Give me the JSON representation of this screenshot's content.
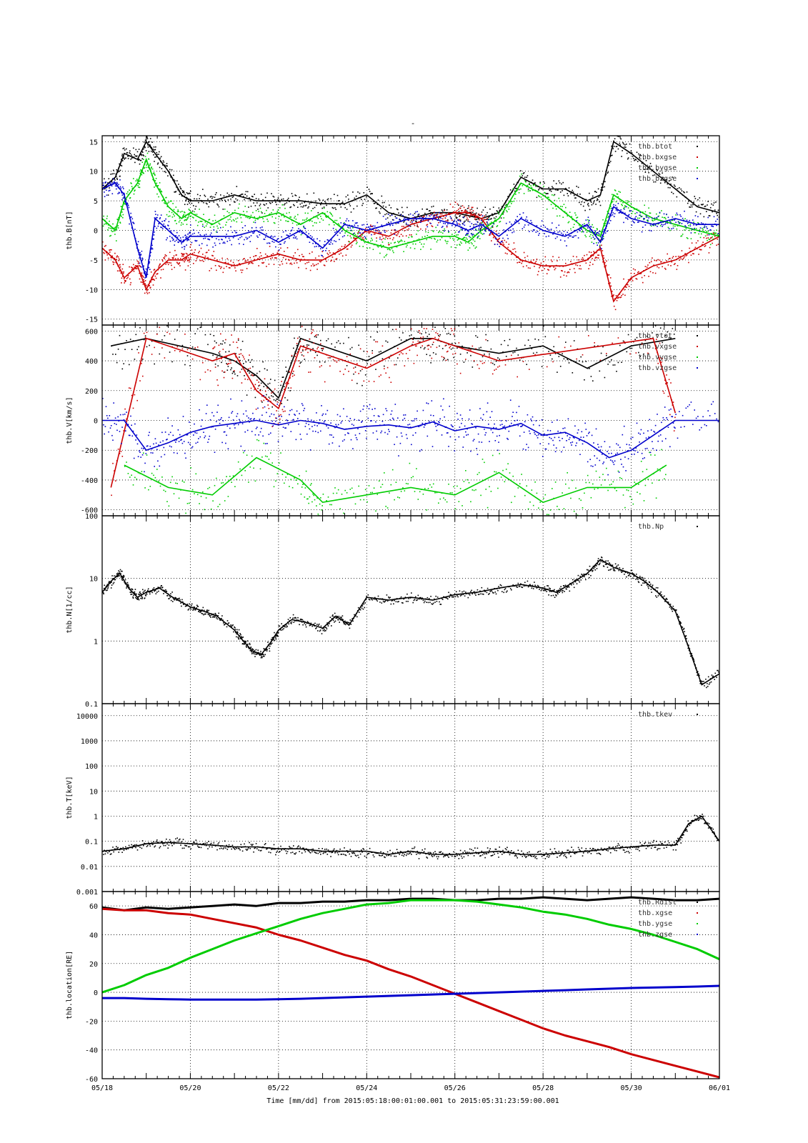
{
  "figure": {
    "title": "-",
    "xlabel": "Time [mm/dd]  from 2015:05:18:00:01:00.001  to  2015:05:31:23:59:00.001",
    "x_ticks": [
      "05/18",
      "05/20",
      "05/22",
      "05/24",
      "05/26",
      "05/28",
      "05/30",
      "06/01"
    ]
  },
  "chart_data": [
    {
      "id": "B",
      "type": "scatter",
      "ylabel": "thb.B[nT]",
      "xlim": [
        "2015-05-18",
        "2015-06-01"
      ],
      "ylim": [
        -16,
        16
      ],
      "yscale": "linear",
      "y_ticks": [
        15,
        10,
        5,
        0,
        -5,
        -10,
        -15
      ],
      "grid": true,
      "legend_position": "top-right",
      "series": [
        {
          "name": "thb.btot",
          "color": "#000000",
          "x": [
            0.0,
            0.3,
            0.5,
            0.8,
            1.0,
            1.2,
            1.5,
            1.8,
            2.0,
            2.5,
            3.0,
            3.5,
            4.0,
            4.5,
            5.0,
            5.5,
            6.0,
            6.5,
            7.0,
            7.5,
            8.0,
            8.3,
            8.6,
            9.0,
            9.5,
            10.0,
            10.5,
            11.0,
            11.3,
            11.6,
            12.0,
            12.5,
            13.0,
            13.5,
            14.0
          ],
          "y": [
            7,
            9,
            13,
            12,
            15,
            13,
            10,
            6,
            5,
            5,
            6,
            5,
            5,
            5,
            4.5,
            4.5,
            6,
            3,
            2,
            3,
            3,
            2.5,
            2,
            3,
            9,
            7,
            7,
            5,
            6,
            15,
            13,
            10,
            7,
            4,
            3
          ]
        },
        {
          "name": "thb.bxgse",
          "color": "#cc0000",
          "x": [
            0.0,
            0.3,
            0.5,
            0.8,
            1.0,
            1.2,
            1.5,
            1.8,
            2.0,
            2.5,
            3.0,
            3.5,
            4.0,
            4.5,
            5.0,
            5.5,
            6.0,
            6.5,
            7.0,
            7.5,
            8.0,
            8.3,
            8.6,
            9.0,
            9.5,
            10.0,
            10.5,
            11.0,
            11.3,
            11.6,
            12.0,
            12.5,
            13.0,
            13.5,
            14.0
          ],
          "y": [
            -3,
            -5,
            -8,
            -6,
            -10,
            -7,
            -5,
            -5,
            -4,
            -5,
            -6,
            -5,
            -4,
            -5,
            -5,
            -3,
            0,
            -1,
            1,
            2,
            3,
            3,
            2,
            -2,
            -5,
            -6,
            -6,
            -5,
            -3,
            -12,
            -8,
            -6,
            -5,
            -3,
            -1
          ]
        },
        {
          "name": "thb.bygse",
          "color": "#00cc00",
          "x": [
            0.0,
            0.3,
            0.5,
            0.8,
            1.0,
            1.2,
            1.5,
            1.8,
            2.0,
            2.5,
            3.0,
            3.5,
            4.0,
            4.5,
            5.0,
            5.5,
            6.0,
            6.5,
            7.0,
            7.5,
            8.0,
            8.3,
            8.6,
            9.0,
            9.5,
            10.0,
            10.5,
            11.0,
            11.3,
            11.6,
            12.0,
            12.5,
            13.0,
            13.5,
            14.0
          ],
          "y": [
            2,
            0,
            5,
            8,
            12,
            8,
            4,
            2,
            3,
            1,
            3,
            2,
            3,
            1,
            3,
            0,
            -2,
            -3,
            -2,
            -1,
            -1,
            -2,
            0,
            2,
            8,
            6,
            3,
            0,
            -1,
            6,
            4,
            2,
            1,
            0,
            -1
          ]
        },
        {
          "name": "thb.bzgse",
          "color": "#0000cc",
          "x": [
            0.0,
            0.3,
            0.5,
            0.8,
            1.0,
            1.2,
            1.5,
            1.8,
            2.0,
            2.5,
            3.0,
            3.5,
            4.0,
            4.5,
            5.0,
            5.5,
            6.0,
            6.5,
            7.0,
            7.5,
            8.0,
            8.3,
            8.6,
            9.0,
            9.5,
            10.0,
            10.5,
            11.0,
            11.3,
            11.6,
            12.0,
            12.5,
            13.0,
            13.5,
            14.0
          ],
          "y": [
            7,
            8,
            6,
            -3,
            -8,
            2,
            0,
            -2,
            -1,
            -1,
            -1,
            0,
            -2,
            0,
            -3,
            1,
            0,
            1,
            2,
            2,
            1,
            0,
            1,
            -1,
            2,
            0,
            -1,
            1,
            -2,
            4,
            2,
            1,
            2,
            1,
            1
          ]
        }
      ]
    },
    {
      "id": "V",
      "type": "scatter",
      "ylabel": "thb.V[km/s]",
      "xlim": [
        "2015-05-18",
        "2015-06-01"
      ],
      "ylim": [
        -640,
        640
      ],
      "yscale": "linear",
      "y_ticks": [
        600,
        400,
        200,
        0,
        -200,
        -400,
        -600
      ],
      "grid": true,
      "legend_position": "top-right",
      "series": [
        {
          "name": "thb.vtot",
          "color": "#000000",
          "x": [
            0.2,
            1.0,
            2.5,
            3.0,
            3.5,
            4.0,
            4.5,
            5.0,
            6.0,
            7.0,
            7.5,
            8.0,
            9.0,
            10.0,
            11.0,
            12.0,
            13.0
          ],
          "y": [
            500,
            550,
            450,
            400,
            300,
            150,
            550,
            500,
            400,
            550,
            550,
            500,
            450,
            500,
            350,
            500,
            550
          ]
        },
        {
          "name": "thb.vxgse",
          "color": "#cc0000",
          "x": [
            0.2,
            1.0,
            2.5,
            3.0,
            3.5,
            4.0,
            4.5,
            5.0,
            6.0,
            7.0,
            7.5,
            8.0,
            9.0,
            12.5,
            13.0
          ],
          "y": [
            -450,
            550,
            400,
            450,
            200,
            80,
            500,
            450,
            350,
            500,
            550,
            500,
            400,
            550,
            50
          ]
        },
        {
          "name": "thb.vygse",
          "color": "#00cc00",
          "x": [
            0.5,
            1.5,
            2.5,
            3.5,
            4.5,
            5.0,
            6.0,
            7.0,
            8.0,
            9.0,
            10.0,
            11.0,
            12.0,
            12.8
          ],
          "y": [
            -300,
            -450,
            -500,
            -250,
            -400,
            -550,
            -500,
            -450,
            -500,
            -350,
            -550,
            -450,
            -450,
            -300
          ]
        },
        {
          "name": "thb.vzgse",
          "color": "#0000cc",
          "x": [
            0.0,
            0.5,
            1.0,
            1.5,
            2.0,
            2.5,
            3.0,
            3.5,
            4.0,
            4.5,
            5.0,
            5.5,
            6.0,
            6.5,
            7.0,
            7.5,
            8.0,
            8.5,
            9.0,
            9.5,
            10.0,
            10.5,
            11.0,
            11.5,
            12.0,
            12.5,
            13.0,
            14.0
          ],
          "y": [
            0,
            0,
            -200,
            -150,
            -80,
            -40,
            -20,
            0,
            -30,
            0,
            -20,
            -60,
            -40,
            -30,
            -50,
            -10,
            -70,
            -40,
            -60,
            -20,
            -100,
            -80,
            -150,
            -250,
            -200,
            -100,
            0,
            0
          ]
        }
      ]
    },
    {
      "id": "N",
      "type": "scatter",
      "ylabel": "thb.N[1/cc]",
      "xlim": [
        "2015-05-18",
        "2015-06-01"
      ],
      "ylim": [
        0.1,
        100
      ],
      "yscale": "log",
      "y_ticks": [
        100,
        10,
        1,
        0.1
      ],
      "grid": true,
      "legend_position": "top-right",
      "series": [
        {
          "name": "thb.Np",
          "color": "#000000",
          "x": [
            0.0,
            0.2,
            0.4,
            0.6,
            0.8,
            1.0,
            1.3,
            1.6,
            2.0,
            2.3,
            2.6,
            3.0,
            3.2,
            3.4,
            3.6,
            3.8,
            4.0,
            4.3,
            4.6,
            5.0,
            5.3,
            5.6,
            6.0,
            6.5,
            7.0,
            7.5,
            8.0,
            8.5,
            9.0,
            9.5,
            10.0,
            10.3,
            10.6,
            11.0,
            11.3,
            11.6,
            12.0,
            12.3,
            12.6,
            13.0,
            13.3,
            13.6,
            14.0
          ],
          "y": [
            6,
            9,
            12,
            7,
            5,
            6,
            7,
            5,
            3.5,
            3,
            2.5,
            1.5,
            1,
            0.7,
            0.6,
            0.9,
            1.5,
            2.2,
            2,
            1.6,
            2.5,
            1.8,
            5,
            4.5,
            5,
            4.5,
            5.5,
            6,
            7,
            8,
            7,
            6,
            8,
            12,
            20,
            15,
            12,
            9,
            6,
            3,
            0.8,
            0.2,
            0.3
          ]
        }
      ]
    },
    {
      "id": "T",
      "type": "scatter",
      "ylabel": "thb.T[keV]",
      "xlim": [
        "2015-05-18",
        "2015-06-01"
      ],
      "ylim": [
        0.001,
        30000
      ],
      "yscale": "log",
      "y_ticks": [
        10000,
        1000,
        100,
        10,
        1,
        0.1,
        0.01,
        0.001
      ],
      "grid": true,
      "legend_position": "top-right",
      "series": [
        {
          "name": "thb.tkev",
          "color": "#000000",
          "x": [
            0.0,
            0.5,
            1.0,
            1.5,
            2.0,
            2.5,
            3.0,
            3.5,
            4.0,
            4.5,
            5.0,
            5.5,
            6.0,
            6.5,
            7.0,
            7.5,
            8.0,
            8.5,
            9.0,
            9.5,
            10.0,
            10.5,
            11.0,
            11.5,
            12.0,
            12.5,
            13.0,
            13.3,
            13.6,
            14.0
          ],
          "y": [
            0.04,
            0.05,
            0.08,
            0.09,
            0.08,
            0.07,
            0.06,
            0.06,
            0.05,
            0.05,
            0.04,
            0.04,
            0.04,
            0.03,
            0.04,
            0.03,
            0.03,
            0.035,
            0.04,
            0.03,
            0.03,
            0.035,
            0.04,
            0.05,
            0.06,
            0.07,
            0.07,
            0.5,
            1,
            0.1
          ]
        }
      ]
    },
    {
      "id": "location",
      "type": "line",
      "ylabel": "thb.location[RE]",
      "xlim": [
        "2015-05-18",
        "2015-06-01"
      ],
      "ylim": [
        -60,
        70
      ],
      "yscale": "linear",
      "y_ticks": [
        60,
        40,
        20,
        0,
        -20,
        -40,
        -60
      ],
      "grid": true,
      "legend_position": "top-right",
      "series": [
        {
          "name": "thb.Rdist",
          "color": "#000000",
          "x": [
            0,
            0.5,
            1.0,
            1.5,
            2.0,
            2.5,
            3.0,
            3.5,
            4.0,
            4.5,
            5.0,
            5.5,
            6.0,
            6.5,
            7.0,
            7.5,
            8.0,
            8.5,
            9.0,
            9.5,
            10.0,
            10.5,
            11.0,
            11.5,
            12.0,
            12.5,
            13.0,
            13.5,
            14.0
          ],
          "y": [
            59,
            57,
            59,
            58,
            59,
            60,
            61,
            60,
            62,
            62,
            63,
            63,
            64,
            64,
            65,
            65,
            64,
            64,
            65,
            65,
            66,
            65,
            64,
            65,
            66,
            65,
            64,
            64,
            65
          ]
        },
        {
          "name": "thb.xgse",
          "color": "#cc0000",
          "x": [
            0,
            0.5,
            1.0,
            1.5,
            2.0,
            2.5,
            3.0,
            3.5,
            4.0,
            4.5,
            5.0,
            5.5,
            6.0,
            6.5,
            7.0,
            7.5,
            8.0,
            8.5,
            9.0,
            9.5,
            10.0,
            10.5,
            11.0,
            11.5,
            12.0,
            12.5,
            13.0,
            13.5,
            14.0
          ],
          "y": [
            58,
            57,
            57,
            55,
            54,
            51,
            48,
            45,
            40,
            36,
            31,
            26,
            22,
            16,
            11,
            5,
            -1,
            -7,
            -13,
            -19,
            -25,
            -30,
            -34,
            -38,
            -43,
            -47,
            -51,
            -55,
            -59
          ]
        },
        {
          "name": "thb.ygse",
          "color": "#00cc00",
          "x": [
            0,
            0.5,
            1.0,
            1.5,
            2.0,
            2.5,
            3.0,
            3.5,
            4.0,
            4.5,
            5.0,
            5.5,
            6.0,
            6.5,
            7.0,
            7.5,
            8.0,
            8.5,
            9.0,
            9.5,
            10.0,
            10.5,
            11.0,
            11.5,
            12.0,
            12.5,
            13.0,
            13.5,
            14.0
          ],
          "y": [
            0,
            5,
            12,
            17,
            24,
            30,
            36,
            41,
            46,
            51,
            55,
            58,
            61,
            62,
            64,
            64,
            64,
            63,
            61,
            59,
            56,
            54,
            51,
            47,
            44,
            40,
            35,
            30,
            23
          ]
        },
        {
          "name": "thb.zgse",
          "color": "#0000cc",
          "x": [
            0,
            0.5,
            1.0,
            1.5,
            2.0,
            2.5,
            3.0,
            3.5,
            4.0,
            4.5,
            5.0,
            5.5,
            6.0,
            6.5,
            7.0,
            7.5,
            8.0,
            8.5,
            9.0,
            9.5,
            10.0,
            10.5,
            11.0,
            11.5,
            12.0,
            12.5,
            13.0,
            13.5,
            14.0
          ],
          "y": [
            -4,
            -4,
            -4.5,
            -4.8,
            -5,
            -5,
            -5,
            -5,
            -4.8,
            -4.5,
            -4,
            -3.5,
            -3,
            -2.5,
            -2,
            -1.5,
            -1,
            -0.5,
            0,
            0.5,
            1,
            1.5,
            2,
            2.5,
            3,
            3.3,
            3.6,
            4,
            4.5
          ]
        }
      ]
    }
  ]
}
